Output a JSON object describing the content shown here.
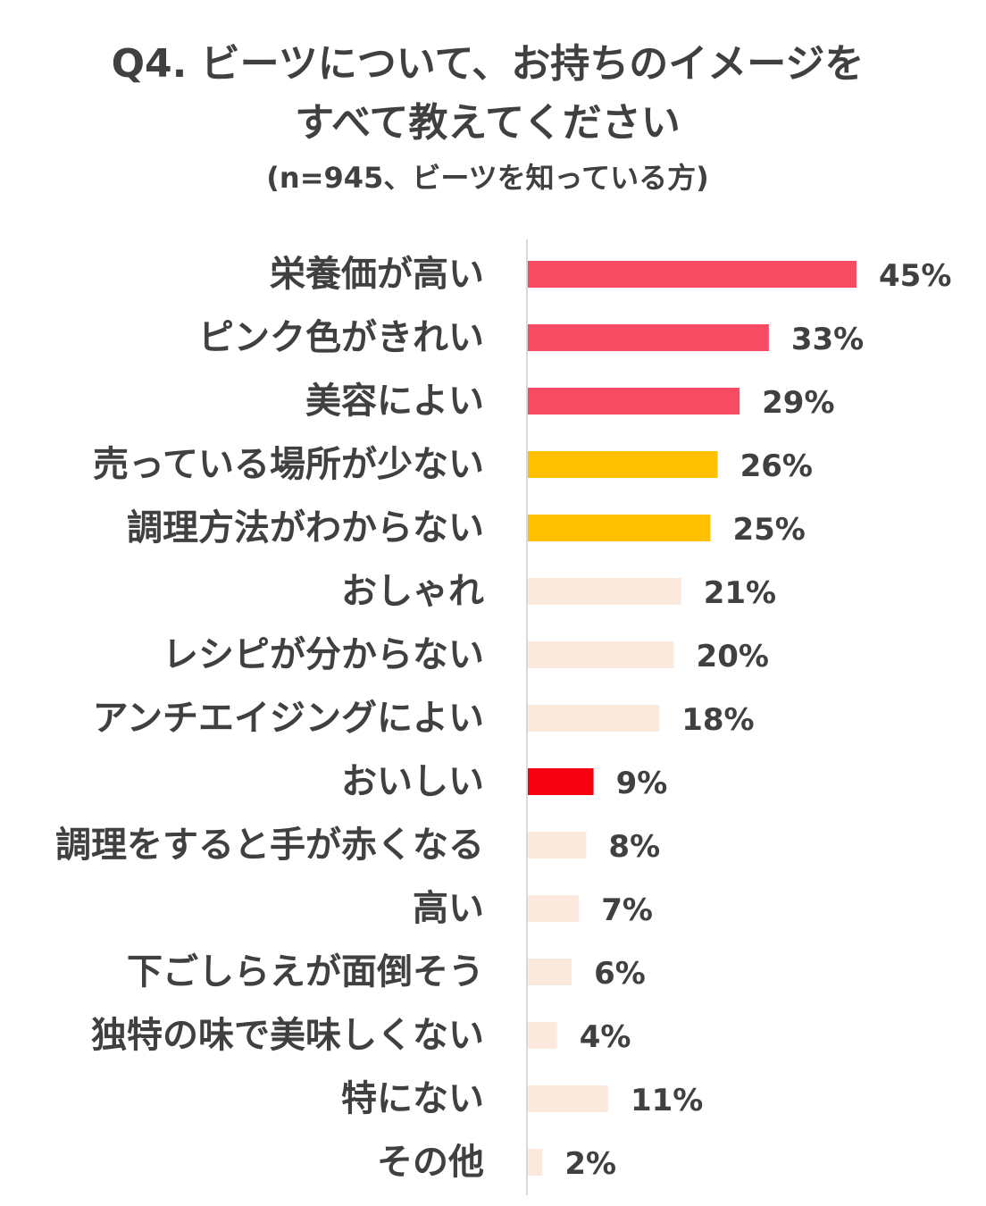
{
  "chart_data": {
    "type": "bar",
    "orientation": "horizontal",
    "title_line1": "Q4. ビーツについて、お持ちのイメージを",
    "title_line2": "すべて教えてください",
    "subtitle": "(n=945、ビーツを知っている方)",
    "xlim": [
      0,
      50
    ],
    "grid": false,
    "legend": "none",
    "categories": [
      "栄養価が高い",
      "ピンク色がきれい",
      "美容によい",
      "売っている場所が少ない",
      "調理方法がわからない",
      "おしゃれ",
      "レシピが分からない",
      "アンチエイジングによい",
      "おいしい",
      "調理をすると手が赤くなる",
      "高い",
      "下ごしらえが面倒そう",
      "独特の味で美味しくない",
      "特にない",
      "その他"
    ],
    "values": [
      45,
      33,
      29,
      26,
      25,
      21,
      20,
      18,
      9,
      8,
      7,
      6,
      4,
      11,
      2
    ],
    "value_labels": [
      "45%",
      "33%",
      "29%",
      "26%",
      "25%",
      "21%",
      "20%",
      "18%",
      "9%",
      "8%",
      "7%",
      "6%",
      "4%",
      "11%",
      "2%"
    ],
    "bar_colors": [
      "#F74B63",
      "#F74B63",
      "#F74B63",
      "#FFC000",
      "#FFC000",
      "#FBE9DE",
      "#FBE9DE",
      "#FBE9DE",
      "#F40011",
      "#FBE9DE",
      "#FBE9DE",
      "#FBE9DE",
      "#FBE9DE",
      "#FBE9DE",
      "#FBE9DE"
    ],
    "text_color": "#404040",
    "axis_color": "#D9D9D9"
  }
}
